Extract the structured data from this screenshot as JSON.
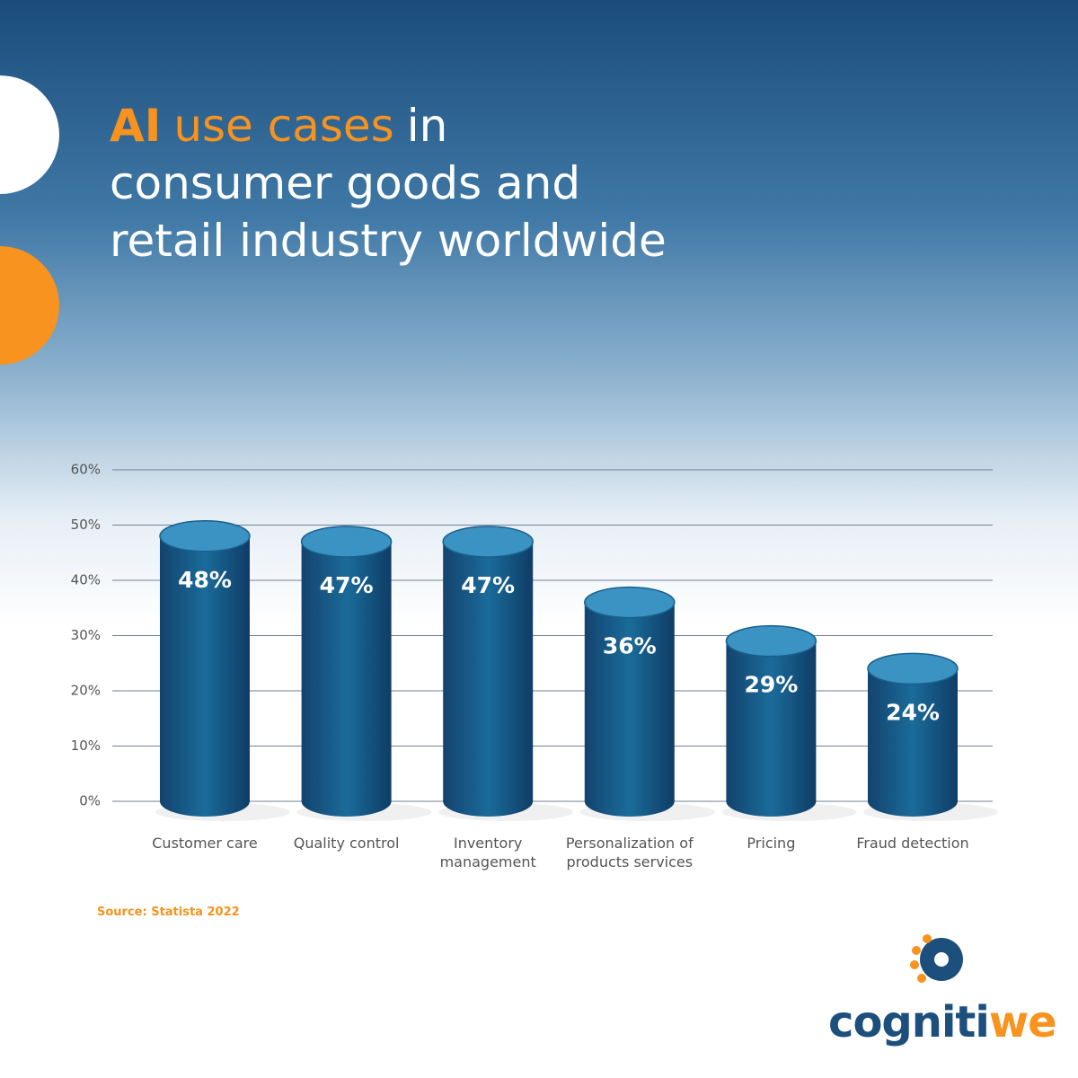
{
  "chart_data": {
    "type": "cylinder",
    "title": [
      [
        "AI",
        "use cases",
        "in"
      ],
      [
        "consumer goods and"
      ],
      [
        "retail industry worldwide"
      ]
    ],
    "categories": [
      "Customer care",
      "Quality control",
      "Inventory management",
      "Personalization of products services",
      "Pricing",
      "Fraud detection"
    ],
    "values": [
      48,
      47,
      47,
      36,
      29,
      24
    ],
    "value_labels": [
      "48%",
      "47%",
      "47%",
      "36%",
      "29%",
      "24%"
    ],
    "color": "#1a5f8c",
    "ylim": [
      0,
      60
    ],
    "yticks": [
      {
        "value": 0,
        "label": "0%"
      },
      {
        "value": 10,
        "label": "10%"
      },
      {
        "value": 20,
        "label": "20%"
      },
      {
        "value": 30,
        "label": "30%"
      },
      {
        "value": 40,
        "label": "40%"
      },
      {
        "value": 50,
        "label": "50%"
      },
      {
        "value": 60,
        "label": "60%"
      }
    ],
    "grid": true,
    "source": "Source: Statista 2022"
  },
  "logo": [
    "cogniti",
    "we"
  ]
}
